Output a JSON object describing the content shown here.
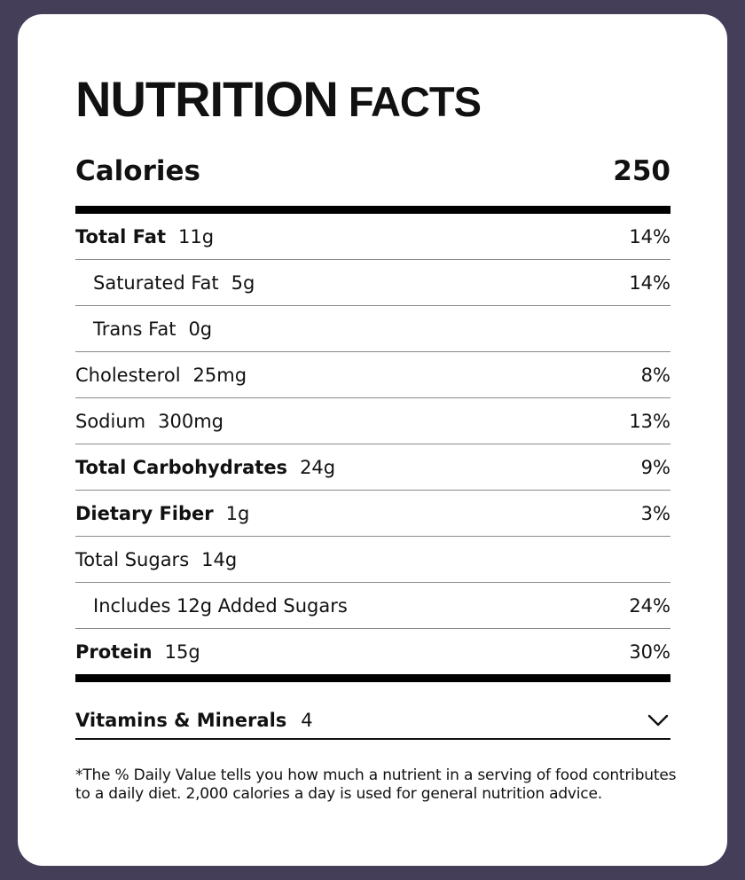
{
  "title": {
    "word1": "NUTRITION",
    "word2": "FACTS"
  },
  "calories": {
    "label": "Calories",
    "value": "250"
  },
  "rows": [
    {
      "name": "Total Fat",
      "amount": "11g",
      "dv": "14%",
      "bold": true,
      "indent": false
    },
    {
      "name": "Saturated Fat",
      "amount": "5g",
      "dv": "14%",
      "bold": false,
      "indent": true
    },
    {
      "name": "Trans Fat",
      "amount": "0g",
      "dv": "",
      "bold": false,
      "indent": true
    },
    {
      "name": "Cholesterol",
      "amount": "25mg",
      "dv": "8%",
      "bold": false,
      "indent": false
    },
    {
      "name": "Sodium",
      "amount": "300mg",
      "dv": "13%",
      "bold": false,
      "indent": false
    },
    {
      "name": "Total Carbohydrates",
      "amount": "24g",
      "dv": "9%",
      "bold": true,
      "indent": false
    },
    {
      "name": "Dietary Fiber",
      "amount": "1g",
      "dv": "3%",
      "bold": true,
      "indent": false
    },
    {
      "name": "Total Sugars",
      "amount": "14g",
      "dv": "",
      "bold": false,
      "indent": false
    },
    {
      "name": "Includes 12g Added Sugars",
      "amount": "",
      "dv": "24%",
      "bold": false,
      "indent": true
    },
    {
      "name": "Protein",
      "amount": "15g",
      "dv": "30%",
      "bold": true,
      "indent": false
    }
  ],
  "vitamins": {
    "label": "Vitamins & Minerals",
    "count": "4",
    "icon": "chevron-down-icon"
  },
  "footnote": "*The % Daily Value tells you how much a nutrient in a serving of food contributes to a daily diet. 2,000 calories a day is used for general nutrition advice.",
  "colors": {
    "background": "#443e59",
    "card": "#ffffff",
    "text": "#111111",
    "divider": "#8a8a8a"
  }
}
